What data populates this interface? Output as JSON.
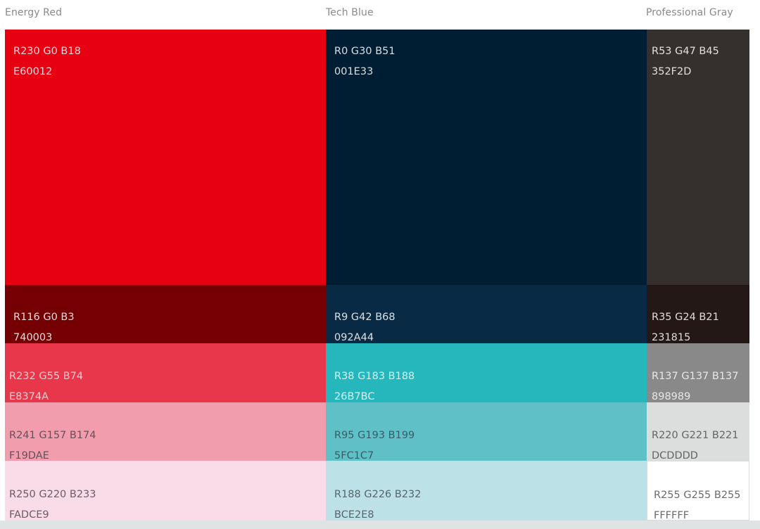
{
  "columns": [
    {
      "name": "Energy Red",
      "swatches": [
        {
          "rgb": "R230 G0 B18",
          "hex": "E60012",
          "color": "#E60012",
          "text_color": "rgba(255,255,255,0.85)"
        },
        {
          "rgb": "R116 G0 B3",
          "hex": "740003",
          "color": "#740003",
          "text_color": "rgba(255,255,255,0.85)"
        },
        {
          "rgb": "R232 G55 B74",
          "hex": "E8374A",
          "color": "#E8374A",
          "text_color": "rgba(255,255,255,0.75)"
        },
        {
          "rgb": "R241 G157 B174",
          "hex": "F19DAE",
          "color": "#F19DAE",
          "text_color": "rgba(70,60,65,0.8)"
        },
        {
          "rgb": "R250 G220 B233",
          "hex": "FADCE9",
          "color": "#FADCE9",
          "text_color": "rgba(70,60,65,0.8)"
        }
      ]
    },
    {
      "name": "Tech Blue",
      "swatches": [
        {
          "rgb": "R0 G30 B51",
          "hex": "001E33",
          "color": "#001E33",
          "text_color": "rgba(255,255,255,0.85)"
        },
        {
          "rgb": "R9 G42 B68",
          "hex": "092A44",
          "color": "#092A44",
          "text_color": "rgba(255,255,255,0.85)"
        },
        {
          "rgb": "R38 G183 B188",
          "hex": "26B7BC",
          "color": "#26B7BC",
          "text_color": "rgba(255,255,255,0.8)"
        },
        {
          "rgb": "R95 G193 B199",
          "hex": "5FC1C7",
          "color": "#5FC1C7",
          "text_color": "rgba(40,60,70,0.75)"
        },
        {
          "rgb": "R188 G226 B232",
          "hex": "BCE2E8",
          "color": "#BCE2E8",
          "text_color": "rgba(60,70,75,0.8)"
        }
      ]
    },
    {
      "name": "Professional Gray",
      "swatches": [
        {
          "rgb": "R53 G47 B45",
          "hex": "352F2D",
          "color": "#352F2D",
          "text_color": "rgba(255,255,255,0.85)"
        },
        {
          "rgb": "R35 G24 B21",
          "hex": "231815",
          "color": "#231815",
          "text_color": "rgba(255,255,255,0.85)"
        },
        {
          "rgb": "R137 G137 B137",
          "hex": "898989",
          "color": "#898989",
          "text_color": "rgba(255,255,255,0.8)"
        },
        {
          "rgb": "R220 G221 B221",
          "hex": "DCDDDD",
          "color": "#DCDDDD",
          "text_color": "rgba(70,70,70,0.8)"
        },
        {
          "rgb": "R255 G255 B255",
          "hex": "FFFFFF",
          "color": "#FFFFFF",
          "text_color": "rgba(70,70,70,0.8)"
        }
      ]
    }
  ]
}
